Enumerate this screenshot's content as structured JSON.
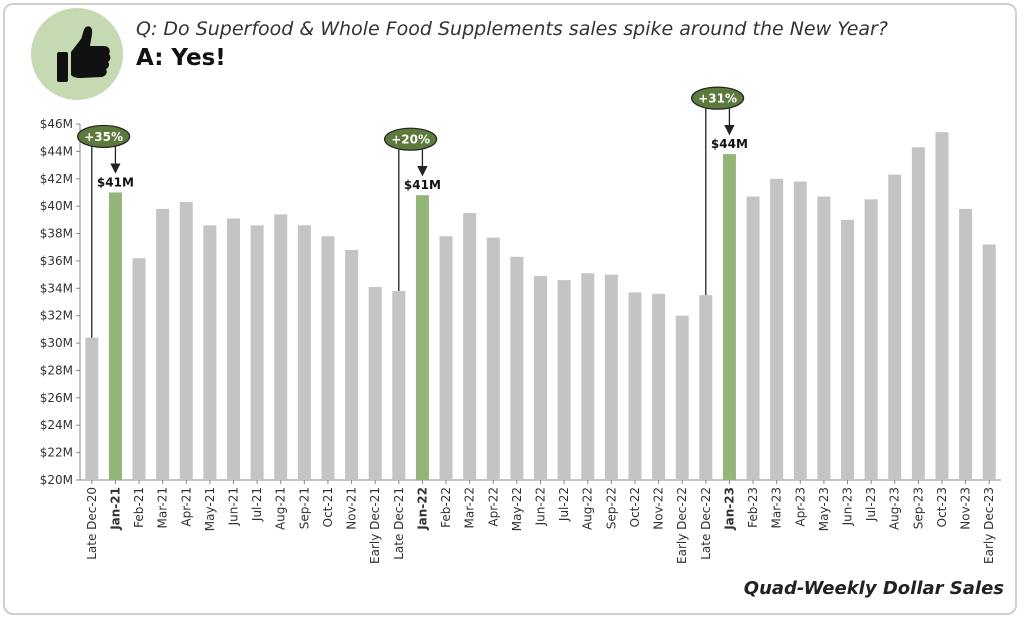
{
  "header": {
    "question": "Q: Do Superfood & Whole Food Supplements sales spike around the New Year?",
    "answer": "A: Yes!",
    "icon": "thumbs-up-icon"
  },
  "caption": "Quad-Weekly Dollar Sales",
  "colors": {
    "bar": "#c4c4c4",
    "highlight": "#93b577",
    "callout": "#5b7a3c",
    "badge": "#c5d9b2"
  },
  "chart_data": {
    "type": "bar",
    "categories": [
      "Late Dec-20",
      "Jan-21",
      "Feb-21",
      "Mar-21",
      "Apr-21",
      "May-21",
      "Jun-21",
      "Jul-21",
      "Aug-21",
      "Sep-21",
      "Oct-21",
      "Nov-21",
      "Early Dec-21",
      "Late Dec-21",
      "Jan-22",
      "Feb-22",
      "Mar-22",
      "Apr-22",
      "May-22",
      "Jun-22",
      "Jul-22",
      "Aug-22",
      "Sep-22",
      "Oct-22",
      "Nov-22",
      "Early Dec-22",
      "Late Dec-22",
      "Jan-23",
      "Feb-23",
      "Mar-23",
      "Apr-23",
      "May-23",
      "Jun-23",
      "Jul-23",
      "Aug-23",
      "Sep-23",
      "Oct-23",
      "Nov-23",
      "Early Dec-23"
    ],
    "values": [
      30.4,
      41.0,
      36.2,
      39.8,
      40.3,
      38.6,
      39.1,
      38.6,
      39.4,
      38.6,
      37.8,
      36.8,
      34.1,
      33.8,
      40.8,
      37.8,
      39.5,
      37.7,
      36.3,
      34.9,
      34.6,
      35.1,
      35.0,
      33.7,
      33.6,
      32.0,
      33.5,
      43.8,
      40.7,
      42.0,
      41.8,
      40.7,
      39.0,
      40.5,
      42.3,
      44.3,
      45.4,
      39.8,
      37.2
    ],
    "unit": "$M",
    "ylim": [
      20,
      46
    ],
    "yticks": [
      "$20M",
      "$22M",
      "$24M",
      "$26M",
      "$28M",
      "$30M",
      "$32M",
      "$34M",
      "$36M",
      "$38M",
      "$40M",
      "$42M",
      "$44M",
      "$46M"
    ],
    "highlighted": [
      "Jan-21",
      "Jan-22",
      "Jan-23"
    ],
    "annotations": [
      {
        "from": "Late Dec-20",
        "to": "Jan-21",
        "change": "+35%",
        "value_label": "$41M"
      },
      {
        "from": "Late Dec-21",
        "to": "Jan-22",
        "change": "+20%",
        "value_label": "$41M"
      },
      {
        "from": "Late Dec-22",
        "to": "Jan-23",
        "change": "+31%",
        "value_label": "$44M"
      }
    ],
    "grid": false
  }
}
